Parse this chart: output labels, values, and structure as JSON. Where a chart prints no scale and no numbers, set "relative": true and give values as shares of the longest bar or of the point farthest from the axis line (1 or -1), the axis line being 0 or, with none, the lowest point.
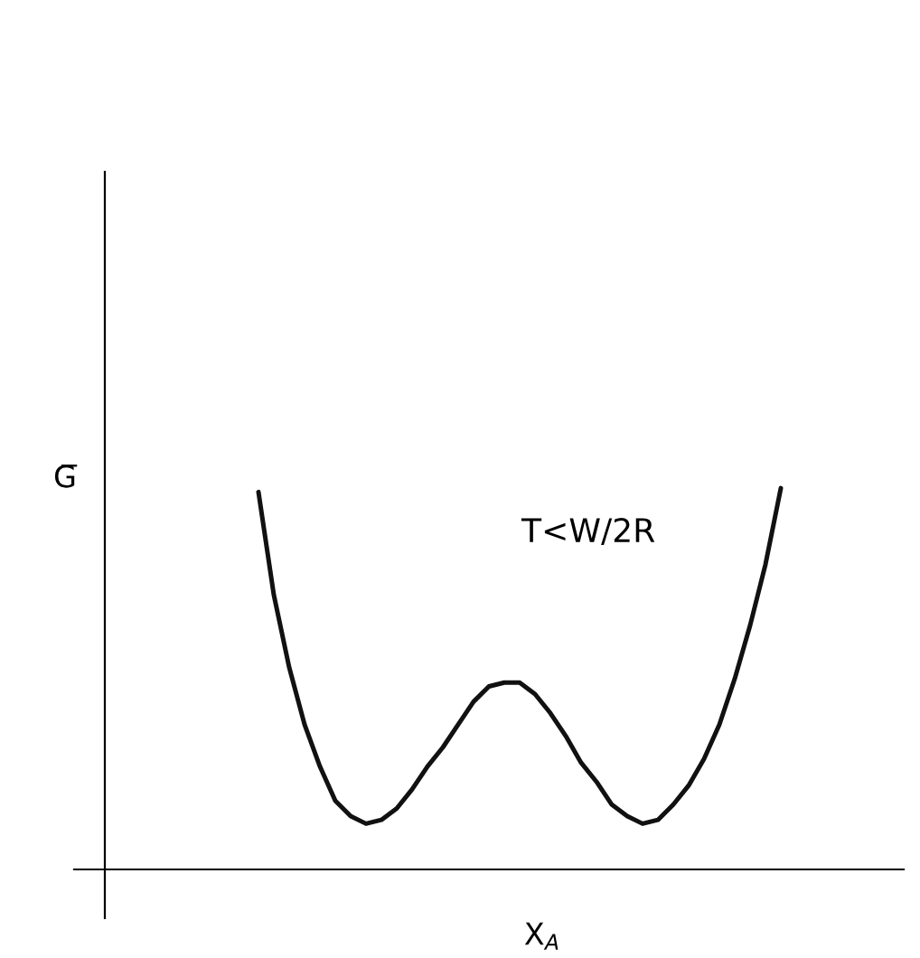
{
  "chart_data": {
    "type": "line",
    "relative": true,
    "xlabel": "X$_{A}$",
    "ylabel": "G̅",
    "annotations": [
      "T<W/2R"
    ],
    "color": "#111111",
    "grid": false,
    "legend": false,
    "marker": "none",
    "line_style": "solid",
    "categories": [
      null,
      null,
      null,
      null,
      null,
      null,
      null,
      null,
      null,
      null,
      null,
      null,
      null,
      null,
      null,
      null,
      null,
      null,
      null,
      null,
      null,
      null,
      null,
      null,
      null,
      null,
      null,
      null,
      null,
      null,
      null,
      null,
      null,
      null,
      null,
      null,
      null,
      null,
      null,
      null,
      null,
      null,
      null,
      null,
      null,
      null,
      null,
      null,
      null,
      null,
      null,
      null,
      null
    ],
    "values": [
      null,
      null,
      null,
      null,
      null,
      null,
      null,
      null,
      null,
      null,
      0.99,
      0.72,
      0.53,
      0.38,
      0.27,
      0.18,
      0.14,
      0.12,
      0.13,
      0.16,
      0.21,
      0.27,
      0.32,
      0.38,
      0.44,
      0.48,
      0.49,
      0.49,
      0.46,
      0.41,
      0.35,
      0.28,
      0.23,
      0.17,
      0.14,
      0.12,
      0.13,
      0.17,
      0.22,
      0.29,
      0.38,
      0.5,
      0.64,
      0.8,
      1.0,
      null,
      null,
      null,
      null,
      null,
      null,
      null,
      null
    ]
  }
}
